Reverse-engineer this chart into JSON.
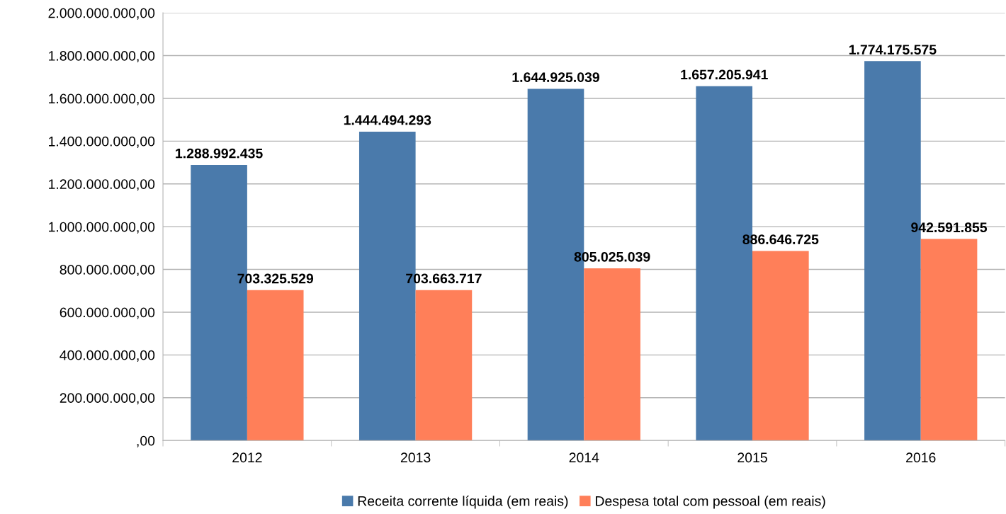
{
  "chart_data": {
    "type": "bar",
    "categories": [
      "2012",
      "2013",
      "2014",
      "2015",
      "2016"
    ],
    "series": [
      {
        "name": "Receita corrente líquida (em reais)",
        "color": "#4a7aab",
        "values": [
          1288992435,
          1444494293,
          1644925039,
          1657205941,
          1774175575
        ],
        "value_labels": [
          "1.288.992.435",
          "1.444.494.293",
          "1.644.925.039",
          "1.657.205.941",
          "1.774.175.575"
        ]
      },
      {
        "name": "Despesa total com pessoal (em reais)",
        "color": "#ff7f59",
        "values": [
          703325529,
          703663717,
          805025039,
          886646725,
          942591855
        ],
        "value_labels": [
          "703.325.529",
          "703.663.717",
          "805.025.039",
          "886.646.725",
          "942.591.855"
        ]
      }
    ],
    "ylim": [
      0,
      2000000000
    ],
    "yticks": [
      {
        "value": 0,
        "label": ",00"
      },
      {
        "value": 200000000,
        "label": "200.000.000,00"
      },
      {
        "value": 400000000,
        "label": "400.000.000,00"
      },
      {
        "value": 600000000,
        "label": "600.000.000,00"
      },
      {
        "value": 800000000,
        "label": "800.000.000,00"
      },
      {
        "value": 1000000000,
        "label": "1.000.000.000,00"
      },
      {
        "value": 1200000000,
        "label": "1.200.000.000,00"
      },
      {
        "value": 1400000000,
        "label": "1.400.000.000,00"
      },
      {
        "value": 1600000000,
        "label": "1.600.000.000,00"
      },
      {
        "value": 1800000000,
        "label": "1.800.000.000,00"
      },
      {
        "value": 2000000000,
        "label": "2.000.000.000,00"
      }
    ],
    "grid": "y",
    "legend": "bottom"
  }
}
